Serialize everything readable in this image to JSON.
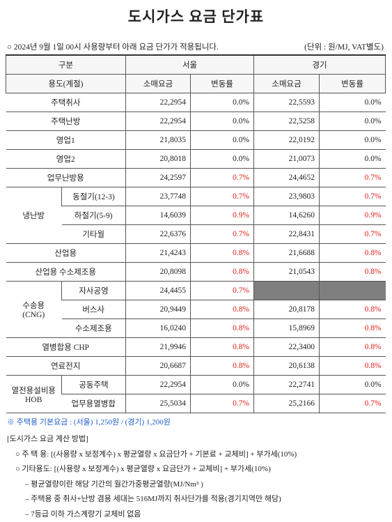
{
  "title": "도시가스 요금 단가표",
  "notice": "○ 2024년 9월 1일 00시 사용량부터 아래 요금 단가가 적용됩니다.",
  "unit": "(단위 : 원/MJ, VAT별도)",
  "table": {
    "header": {
      "group": "구분",
      "regions": [
        "서울",
        "경기"
      ],
      "usage": "용도(계절)",
      "columns": [
        "소매요금",
        "변동률",
        "소매요금",
        "변동률"
      ]
    },
    "rows": [
      {
        "label": "주택취사",
        "values": [
          "22,2954",
          "0.0%",
          "22,5593",
          "0.0%"
        ]
      },
      {
        "label": "주택난방",
        "values": [
          "22,2954",
          "0.0%",
          "22,5258",
          "0.0%"
        ]
      },
      {
        "label": "영업1",
        "values": [
          "21,8035",
          "0.0%",
          "22,0192",
          "0.0%"
        ]
      },
      {
        "label": "영업2",
        "values": [
          "20,8018",
          "0.0%",
          "21,0073",
          "0.0%"
        ]
      },
      {
        "label": "업무난방용",
        "values": [
          "24,2597",
          "0.7%",
          "24,4652",
          "0.7%"
        ]
      },
      {
        "label": "냉난방",
        "subrows": [
          {
            "label": "동절기(12-3)",
            "values": [
              "23,7748",
              "0.7%",
              "23,9803",
              "0.7%"
            ]
          },
          {
            "label": "하절기(5-9)",
            "values": [
              "14,6039",
              "0.9%",
              "14,6260",
              "0.9%"
            ]
          },
          {
            "label": "기타월",
            "values": [
              "22,6376",
              "0.7%",
              "22,8431",
              "0.7%"
            ]
          }
        ]
      },
      {
        "label": "산업용",
        "values": [
          "21,4243",
          "0.8%",
          "21,6688",
          "0.8%"
        ]
      },
      {
        "label": "산업용 수소제조용",
        "values": [
          "20,8098",
          "0.8%",
          "21,0543",
          "0.8%"
        ]
      },
      {
        "label": "수송용\n(CNG)",
        "subrows": [
          {
            "label": "자사공영",
            "values": [
              "24,4455",
              "0.7%",
              null,
              null
            ]
          },
          {
            "label": "버스사",
            "values": [
              "20,9449",
              "0.8%",
              "20,8178",
              "0.8%"
            ]
          },
          {
            "label": "수소제조용",
            "values": [
              "16,0240",
              "0.8%",
              "15,8969",
              "0.8%"
            ]
          }
        ]
      },
      {
        "label": "열병합용 CHP",
        "values": [
          "21,9946",
          "0.8%",
          "22,3400",
          "0.8%"
        ]
      },
      {
        "label": "연료전지",
        "values": [
          "20,6687",
          "0.8%",
          "20,6138",
          "0.8%"
        ]
      },
      {
        "label": "열전용설비용\nHOB",
        "subrows": [
          {
            "label": "공동주택",
            "values": [
              "22,2954",
              "0.0%",
              "22,2741",
              "0.0%"
            ]
          },
          {
            "label": "업무용열병합",
            "values": [
              "25,5034",
              "0.7%",
              "25,2166",
              "0.7%"
            ]
          }
        ]
      }
    ]
  },
  "basic_fee": "※ 주택용 기본요금 : (서울) 1,250원 / (경기) 1,200원",
  "method": {
    "title": "[도시가스 요금 계산 방법]",
    "items": [
      "○ 주 택 용: [(사용량 x 보정계수) x 평균열량 x 요금단가 + 기본료 + 교체비] + 부가세(10%)",
      "○ 기타용도: [(사용량 x 보정계수) x 평균열량 x 요금단가 + 교체비] + 부가세(10%)"
    ],
    "notes": [
      "– 평균열량이란 해당 기간의 월간가중평균열량(MJ/Nm³ )",
      "– 주택용 중 취사+난방 겸용 세대는 516MJ까지 취사단가를 적용(경기지역만 해당)",
      "– 7등급 이하 가스계량기 교체비 없음"
    ]
  }
}
